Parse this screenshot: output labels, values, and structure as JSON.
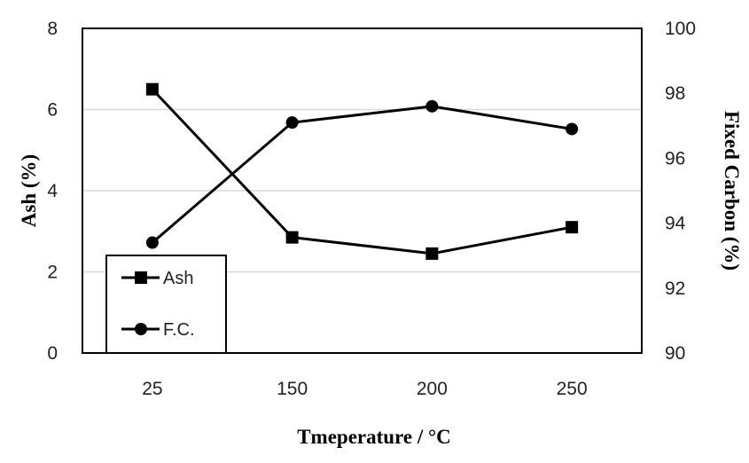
{
  "chart_data": {
    "type": "line",
    "categories": [
      "25",
      "150",
      "200",
      "250"
    ],
    "xlabel": "Tmeperature / °C",
    "y_left": {
      "label": "Ash (%)",
      "range": [
        0,
        8
      ],
      "ticks": [
        "0",
        "2",
        "4",
        "6",
        "8"
      ]
    },
    "y_right": {
      "label": "Fixed Carbon (%)",
      "range": [
        90,
        100
      ],
      "ticks": [
        "90",
        "92",
        "94",
        "96",
        "98",
        "100"
      ]
    },
    "grid": "horizontal",
    "legend_position": "bottom-left",
    "series": [
      {
        "name": "Ash",
        "axis": "left",
        "marker": "square",
        "values": [
          6.5,
          2.85,
          2.45,
          3.1
        ]
      },
      {
        "name": "F.C.",
        "axis": "right",
        "marker": "circle",
        "values": [
          93.4,
          97.1,
          97.6,
          96.9
        ]
      }
    ],
    "colors": {
      "line": "#000000",
      "grid": "#d9d9d9",
      "frame": "#000000"
    }
  }
}
